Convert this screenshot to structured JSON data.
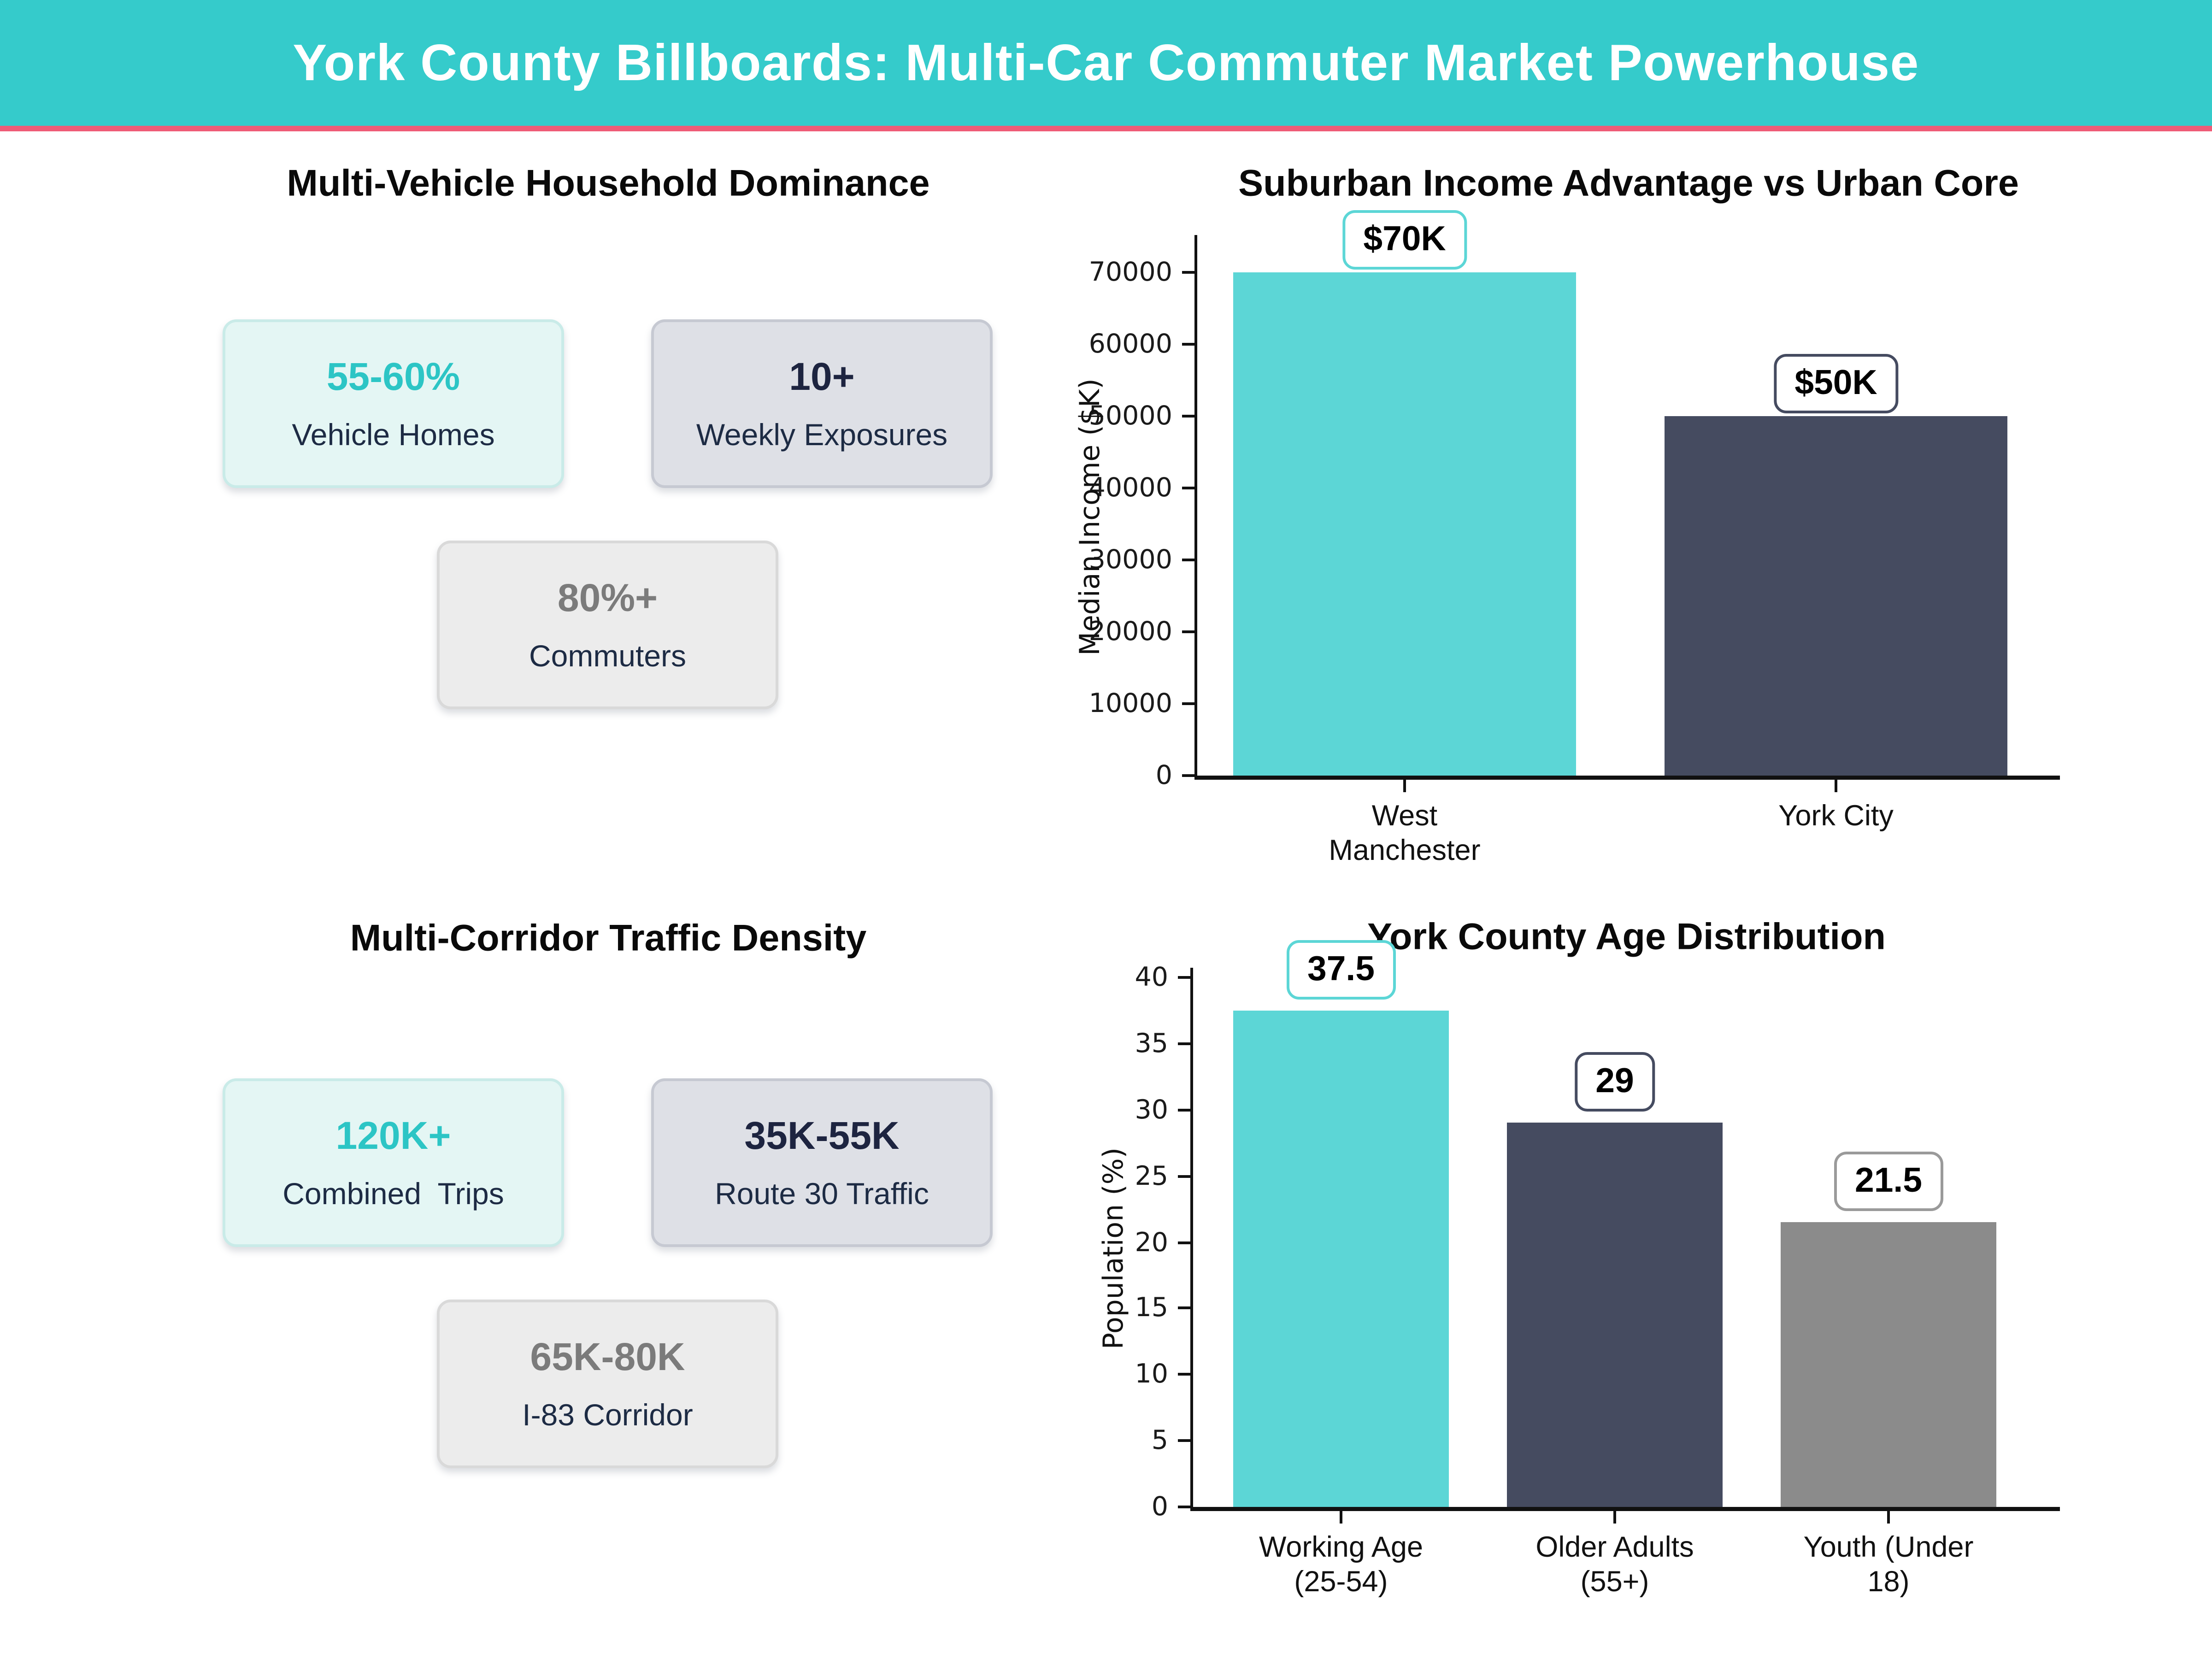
{
  "header": {
    "title": "York County Billboards: Multi-Car Commuter Market Powerhouse",
    "bg_color": "#35cbcb",
    "accent_line_color": "#ef5c77",
    "text_color": "#ffffff"
  },
  "panels": {
    "households": {
      "title": "Multi-Vehicle Household Dominance",
      "cards": [
        {
          "value": "55-60%",
          "label": "Vehicle Homes",
          "value_color": "#2cc5c5",
          "bg_color": "#e4f6f4",
          "border_color": "#c9ebe8"
        },
        {
          "value": "10+",
          "label": "Weekly Exposures",
          "value_color": "#1d2440",
          "bg_color": "#dee0e6",
          "border_color": "#c6c9d2"
        },
        {
          "value": "80%+",
          "label": "Commuters",
          "value_color": "#7b7b7b",
          "bg_color": "#ececec",
          "border_color": "#d9d9d9"
        }
      ]
    },
    "traffic": {
      "title": "Multi-Corridor Traffic Density",
      "cards": [
        {
          "value": "120K+",
          "label": "Combined  Trips",
          "value_color": "#2cc5c5",
          "bg_color": "#e4f6f4",
          "border_color": "#c9ebe8"
        },
        {
          "value": "35K-55K",
          "label": "Route 30 Traffic",
          "value_color": "#1d2440",
          "bg_color": "#dee0e6",
          "border_color": "#c6c9d2"
        },
        {
          "value": "65K-80K",
          "label": "I-83 Corridor",
          "value_color": "#7b7b7b",
          "bg_color": "#ececec",
          "border_color": "#d9d9d9"
        }
      ]
    }
  },
  "chart_data": [
    {
      "type": "bar",
      "id": "income",
      "title": "Suburban Income Advantage vs Urban Core",
      "categories": [
        "West\nManchester",
        "York City"
      ],
      "values": [
        70000,
        50000
      ],
      "bar_colors": [
        "#5cd6d6",
        "#454b60"
      ],
      "data_labels": [
        "$70K",
        "$50K"
      ],
      "data_label_border_colors": [
        "#5cd6d6",
        "#454b60"
      ],
      "xlabel": "",
      "ylabel": "Median Income ($K)",
      "yticks": [
        0,
        10000,
        20000,
        30000,
        40000,
        50000,
        60000,
        70000
      ],
      "ylim": [
        0,
        75200
      ],
      "grid": false,
      "legend": false
    },
    {
      "type": "bar",
      "id": "age",
      "title": "York County Age Distribution",
      "categories": [
        "Working Age\n(25-54)",
        "Older Adults\n(55+)",
        "Youth (Under\n18)"
      ],
      "values": [
        37.5,
        29,
        21.5
      ],
      "data_labels": [
        "37.5",
        "29",
        "21.5"
      ],
      "bar_colors": [
        "#5cd6d6",
        "#454b60",
        "#8b8b8b"
      ],
      "data_label_border_colors": [
        "#5cd6d6",
        "#454b60",
        "#9a9a9a"
      ],
      "xlabel": "",
      "ylabel": "Population (%)",
      "yticks": [
        0,
        5,
        10,
        15,
        20,
        25,
        30,
        35,
        40
      ],
      "ylim": [
        0,
        40.7
      ],
      "grid": false,
      "legend": false
    }
  ]
}
